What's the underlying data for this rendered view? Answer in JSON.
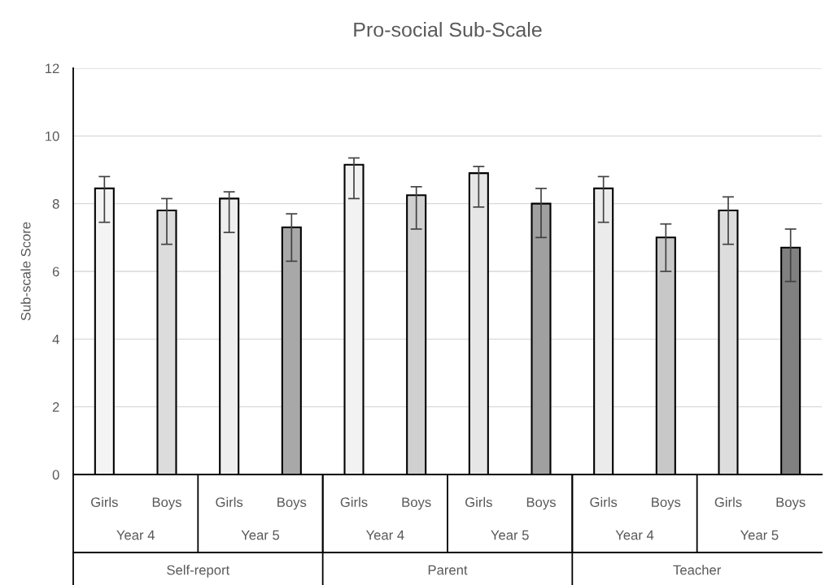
{
  "chart_data": {
    "type": "bar",
    "title": "Pro-social Sub-Scale",
    "ylabel": "Sub-scale Score",
    "categories": [
      "Girls",
      "Boys",
      "Girls",
      "Boys",
      "Girls",
      "Boys",
      "Girls",
      "Boys",
      "Girls",
      "Boys",
      "Girls",
      "Boys"
    ],
    "values": [
      8.45,
      7.8,
      8.15,
      7.3,
      9.15,
      8.25,
      8.9,
      8.0,
      8.45,
      7.0,
      7.8,
      6.7
    ],
    "errors": [
      [
        7.45,
        8.8
      ],
      [
        6.8,
        8.15
      ],
      [
        7.15,
        8.35
      ],
      [
        6.3,
        7.7
      ],
      [
        8.15,
        9.35
      ],
      [
        7.25,
        8.5
      ],
      [
        7.9,
        9.1
      ],
      [
        7.0,
        8.45
      ],
      [
        7.45,
        8.8
      ],
      [
        6.0,
        7.4
      ],
      [
        6.8,
        8.2
      ],
      [
        5.7,
        7.25
      ]
    ],
    "colors": [
      "#f4f4f4",
      "#dcdcdc",
      "#eeeeee",
      "#a8a8a8",
      "#f2f2f2",
      "#d0d0d0",
      "#e6e6e6",
      "#a0a0a0",
      "#ebebeb",
      "#c8c8c8",
      "#dddddd",
      "#808080"
    ],
    "annotations": [
      "Year 4",
      "Year 5",
      "Year 4",
      "Year 5",
      "Year 4",
      "Year 5",
      "Self-report",
      "Parent",
      "Teacher"
    ],
    "ylim": [
      0,
      12
    ],
    "yticks": [
      0,
      2,
      4,
      6,
      8,
      10,
      12
    ],
    "grid": "y"
  }
}
